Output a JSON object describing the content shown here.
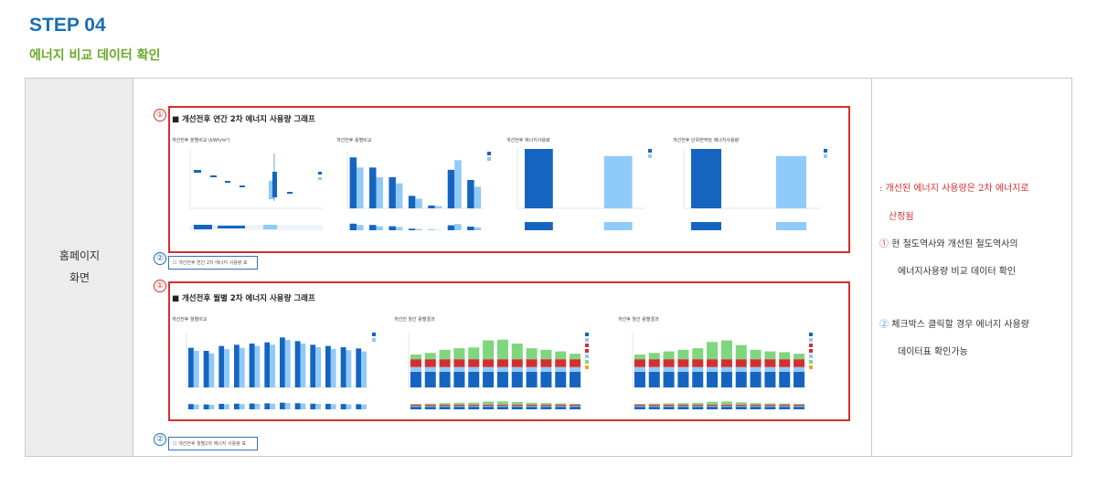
{
  "header": {
    "step": "STEP 04",
    "subtitle": "에너지 비교 데이터 확인"
  },
  "left_label": {
    "line1": "홈페이지",
    "line2": "화면"
  },
  "markers": {
    "one": "①",
    "two": "②"
  },
  "section1": {
    "title": "■ 개선전후 연간 2차 에너지 사용량 그래프",
    "chart_titles": [
      "개선전후 분별비교 (kWh/m²)",
      "개선전후 용별비교",
      "개선전후 에너지사용량",
      "개선전후 단위면적당 에너지사용량"
    ],
    "checkbox_label": "개선전후 연간 2차 에너지 사용량 표"
  },
  "section2": {
    "title": "■ 개선전후 월별 2차 에너지 사용량 그래프",
    "chart_titles": [
      "개선전후 월별비교",
      "개선전 월간 용별결과",
      "개선후 월간 용별결과"
    ],
    "checkbox_label": "개선전후 월별2차 에너지 사용량 표"
  },
  "notes": {
    "n1_line1": ": 개선된 에너지 사용량은 2차 에너지로",
    "n1_line2": "산정됨",
    "n2_line1": "현 철도역사와 개선된 철도역사의",
    "n2_line2": "에너지사용량 비교 데이터 확인",
    "n3_line1": "체크박스 클릭할 경우 에너지 사용량",
    "n3_line2": "데이터표 확인가능"
  },
  "colors": {
    "dark_blue": "#1565c0",
    "light_blue": "#90caf9",
    "red": "#d32f2f",
    "green": "#7ed67e",
    "accent": "#1a6fb5"
  },
  "chart_data": [
    {
      "type": "bar",
      "chart": "annual-use-compare",
      "series": [
        {
          "name": "개선전",
          "values": [
            90,
            72,
            55,
            22,
            5,
            68,
            50
          ]
        },
        {
          "name": "개선후",
          "values": [
            72,
            55,
            44,
            17,
            4,
            85,
            38
          ]
        }
      ]
    },
    {
      "type": "bar",
      "chart": "annual-total",
      "series": [
        {
          "name": "개선전",
          "values": [
            100
          ]
        },
        {
          "name": "개선후",
          "values": [
            88
          ]
        }
      ]
    },
    {
      "type": "bar",
      "chart": "annual-per-area",
      "series": [
        {
          "name": "개선전",
          "values": [
            100
          ]
        },
        {
          "name": "개선후",
          "values": [
            88
          ]
        }
      ]
    },
    {
      "type": "bar",
      "chart": "monthly-compare",
      "series": [
        {
          "name": "개선전",
          "values": [
            65,
            60,
            68,
            70,
            72,
            74,
            82,
            76,
            70,
            68,
            66,
            64
          ]
        },
        {
          "name": "개선후",
          "values": [
            60,
            56,
            63,
            65,
            68,
            70,
            78,
            72,
            66,
            63,
            61,
            59
          ]
        }
      ]
    },
    {
      "type": "bar",
      "chart": "monthly-stack-before",
      "series": [
        {
          "name": "dark",
          "values": [
            20,
            20,
            20,
            20,
            20,
            20,
            20,
            20,
            20,
            20,
            20,
            20
          ]
        },
        {
          "name": "light",
          "values": [
            6,
            6,
            6,
            6,
            6,
            6,
            6,
            6,
            6,
            6,
            6,
            6
          ]
        },
        {
          "name": "red",
          "values": [
            10,
            10,
            10,
            10,
            10,
            10,
            10,
            10,
            10,
            10,
            10,
            10
          ]
        },
        {
          "name": "green",
          "values": [
            6,
            8,
            12,
            14,
            15,
            24,
            25,
            20,
            14,
            12,
            10,
            7
          ]
        }
      ]
    },
    {
      "type": "bar",
      "chart": "monthly-stack-after",
      "series": [
        {
          "name": "dark",
          "values": [
            20,
            20,
            20,
            20,
            20,
            20,
            20,
            20,
            20,
            20,
            20,
            20
          ]
        },
        {
          "name": "light",
          "values": [
            6,
            6,
            6,
            6,
            6,
            6,
            6,
            6,
            6,
            6,
            6,
            6
          ]
        },
        {
          "name": "red",
          "values": [
            10,
            10,
            10,
            10,
            10,
            10,
            10,
            10,
            10,
            10,
            10,
            10
          ]
        },
        {
          "name": "green",
          "values": [
            6,
            8,
            10,
            12,
            14,
            22,
            24,
            18,
            12,
            10,
            9,
            7
          ]
        }
      ]
    }
  ]
}
